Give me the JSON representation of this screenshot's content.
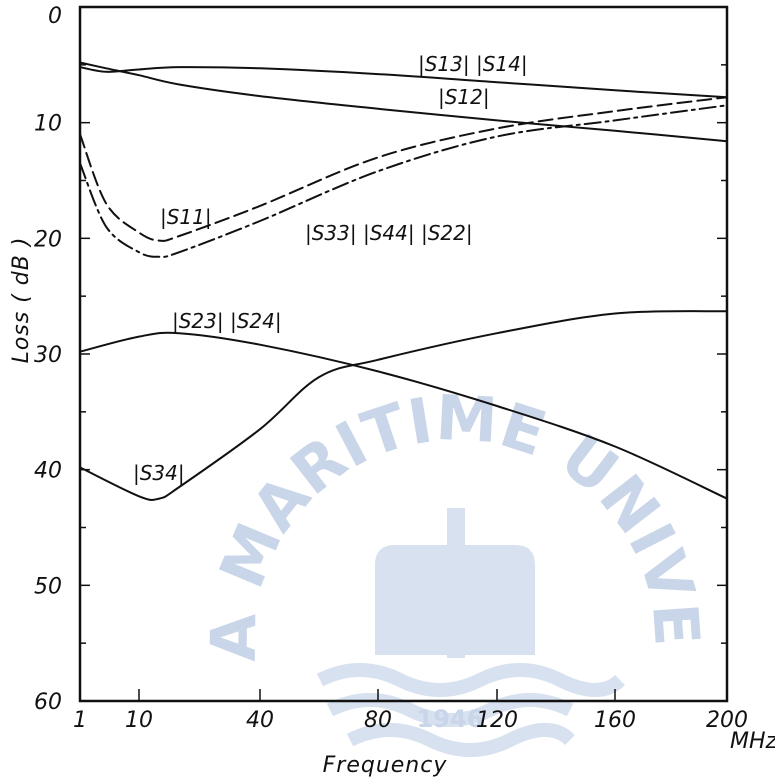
{
  "chart_data": {
    "type": "line",
    "title": "",
    "xlabel": "Frequency",
    "x_unit": "MHz",
    "ylabel": "Loss  ( dB )",
    "ylim": [
      0,
      60
    ],
    "y_ticks": [
      0,
      10,
      20,
      30,
      40,
      50,
      60
    ],
    "x_ticks": [
      {
        "value": 1,
        "label": "1"
      },
      {
        "value": 10,
        "label": "10"
      },
      {
        "value": 40,
        "label": "40"
      },
      {
        "value": 80,
        "label": "80"
      },
      {
        "value": 120,
        "label": "120"
      },
      {
        "value": 160,
        "label": "160"
      },
      {
        "value": 200,
        "label": "200"
      }
    ],
    "grid": false,
    "series": [
      {
        "name": "|S13| |S14|",
        "style": "solid",
        "x": [
          1,
          5,
          10,
          20,
          40,
          80,
          120,
          160,
          200
        ],
        "y": [
          5.2,
          5.6,
          5.4,
          5.2,
          5.3,
          5.8,
          6.5,
          7.2,
          7.8
        ]
      },
      {
        "name": "|S12|",
        "style": "solid",
        "x": [
          1,
          5,
          10,
          20,
          40,
          80,
          120,
          160,
          200
        ],
        "y": [
          4.8,
          5.3,
          5.9,
          6.7,
          7.7,
          8.8,
          9.8,
          10.7,
          11.6
        ]
      },
      {
        "name": "|S11|",
        "style": "dashed",
        "x": [
          1,
          5,
          10,
          15,
          20,
          40,
          80,
          120,
          160,
          200
        ],
        "y": [
          11.0,
          17.0,
          19.5,
          20.2,
          19.8,
          17.2,
          13.0,
          10.5,
          9.0,
          7.8
        ]
      },
      {
        "name": "|S33| |S44| |S22|",
        "style": "dashdot",
        "x": [
          1,
          5,
          10,
          15,
          20,
          40,
          80,
          120,
          160,
          200
        ],
        "y": [
          13.5,
          19.0,
          21.2,
          21.6,
          21.2,
          18.5,
          14.2,
          11.2,
          9.8,
          8.5
        ]
      },
      {
        "name": "|S23| |S24|",
        "style": "solid",
        "x": [
          1,
          10,
          20,
          40,
          80,
          120,
          160,
          200
        ],
        "y": [
          29.8,
          28.5,
          28.2,
          29.2,
          31.5,
          34.5,
          38.0,
          42.5
        ]
      },
      {
        "name": "|S34|",
        "style": "solid",
        "x": [
          1,
          10,
          15,
          20,
          40,
          60,
          80,
          120,
          160,
          200
        ],
        "y": [
          39.8,
          42.3,
          42.5,
          41.5,
          36.5,
          32.0,
          30.5,
          28.2,
          26.5,
          26.3
        ]
      }
    ]
  },
  "watermark": {
    "text": "KOREA MARITIME UNIVERSITY",
    "year": "1946",
    "color": "#9db4d6"
  }
}
